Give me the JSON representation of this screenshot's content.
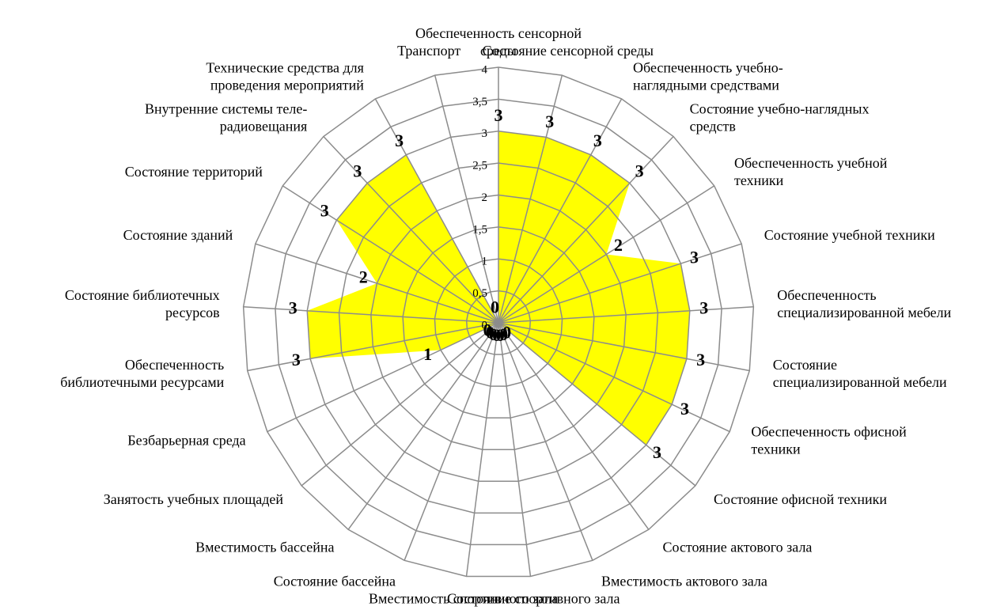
{
  "chart_data": {
    "type": "radar",
    "categories": [
      "Обеспеченность сенсорной\nсреды",
      "Состояние сенсорной среды",
      "Обеспеченность учебно-\nнаглядными средствами",
      "Состояние учебно-наглядных\nсредств",
      "Обеспеченность учебной\nтехники",
      "Состояние учебной техники",
      "Обеспеченность\nспециализированной мебели",
      "Состояние\nспециализированной мебели",
      "Обеспеченность офисной\nтехники",
      "Состояние офисной техники",
      "Состояние актового зала",
      "Вместимость актового зала",
      "Состояние спортивного зала",
      "Вместимость спортивного зала",
      "Состояние бассейна",
      "Вместимость бассейна",
      "Занятость учебных площадей",
      "Безбарьерная среда",
      "Обеспеченность\nбиблиотечными ресурсами",
      "Состояние библиотечных\nресурсов",
      "Состояние зданий",
      "Состояние территорий",
      "Внутренние системы теле-\nрадиовещания",
      "Технические средства для\nпроведения мероприятий",
      "Транспорт"
    ],
    "values": [
      3,
      3,
      3,
      3,
      2,
      3,
      3,
      3,
      3,
      3,
      0,
      0,
      0,
      0,
      0,
      0,
      0,
      1,
      3,
      3,
      2,
      3,
      3,
      3,
      0
    ],
    "color": "#ffff00",
    "ylim": [
      0,
      4
    ],
    "yticks": [
      0,
      {
        "value": 0.5,
        "label": "0,5"
      },
      1,
      {
        "value": 1.5,
        "label": "1,5"
      },
      2,
      {
        "value": 2.5,
        "label": "2,5"
      },
      3,
      {
        "value": 3.5,
        "label": "3,5"
      },
      4
    ],
    "grid": true
  }
}
